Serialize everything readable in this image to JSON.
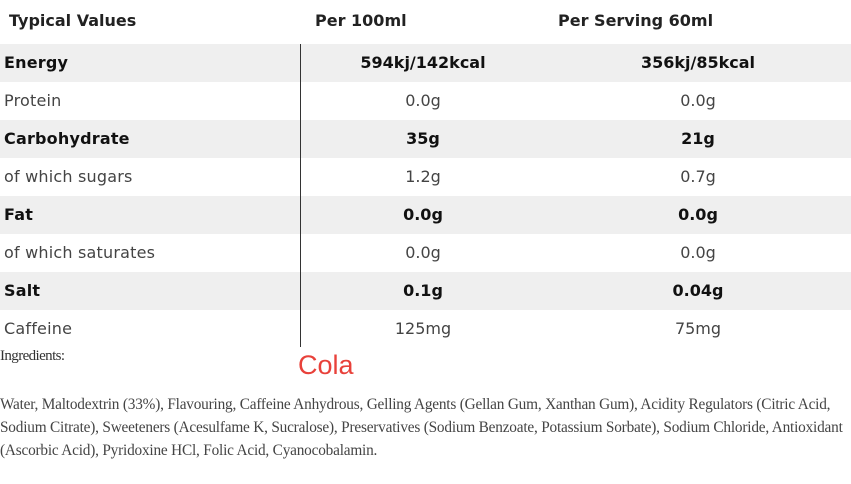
{
  "header": {
    "col0": "Typical Values",
    "col1": "Per 100ml",
    "col2": "Per Serving 60ml"
  },
  "rows": [
    {
      "label": "Energy",
      "per100": "594kj/142kcal",
      "perServing": "356kj/85kcal"
    },
    {
      "label": "Protein",
      "per100": "0.0g",
      "perServing": "0.0g"
    },
    {
      "label": "Carbohydrate",
      "per100": "35g",
      "perServing": "21g"
    },
    {
      "label": "of which sugars",
      "per100": "1.2g",
      "perServing": "0.7g"
    },
    {
      "label": "Fat",
      "per100": "0.0g",
      "perServing": "0.0g"
    },
    {
      "label": "of which saturates",
      "per100": "0.0g",
      "perServing": "0.0g"
    },
    {
      "label": "Salt",
      "per100": "0.1g",
      "perServing": "0.04g"
    },
    {
      "label": "Caffeine",
      "per100": "125mg",
      "perServing": "75mg"
    }
  ],
  "ingredients": {
    "label": "Ingredients:",
    "flavour": "Cola",
    "flavour_color": "#e8413a",
    "text": "Water, Maltodextrin (33%), Flavouring, Caffeine Anhydrous, Gelling Agents (Gellan Gum, Xanthan Gum), Acidity Regulators (Citric Acid, Sodium Citrate), Sweeteners (Acesulfame K, Sucralose), Preservatives (Sodium Benzoate, Potassium Sorbate), Sodium Chloride, Antioxidant (Ascorbic Acid), Pyridoxine HCl, Folic Acid, Cyanocobalamin."
  }
}
